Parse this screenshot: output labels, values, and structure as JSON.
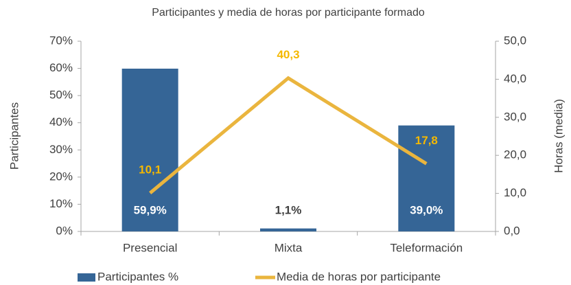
{
  "chart_data": {
    "type": "bar",
    "title": "Participantes y media de horas por participante formado",
    "ylabel": "Participantes",
    "y2label": "Horas (media)",
    "categories": [
      "Presencial",
      "Mixta",
      "Teleformación"
    ],
    "series": [
      {
        "name": "Participantes %",
        "type": "bar",
        "color": "#356596",
        "values": [
          59.9,
          1.1,
          39.0
        ],
        "value_labels": [
          "59,9%",
          "1,1%",
          "39,0%"
        ]
      },
      {
        "name": "Media de horas por participante",
        "type": "line",
        "axis": "y2",
        "color": "#eab53e",
        "values": [
          10.1,
          40.3,
          17.8
        ],
        "value_labels": [
          "10,1",
          "40,3",
          "17,8"
        ]
      }
    ],
    "ylim": [
      0,
      70
    ],
    "yticks": [
      {
        "value": 0,
        "label": "0%"
      },
      {
        "value": 10,
        "label": "10%"
      },
      {
        "value": 20,
        "label": "20%"
      },
      {
        "value": 30,
        "label": "30%"
      },
      {
        "value": 40,
        "label": "40%"
      },
      {
        "value": 50,
        "label": "50%"
      },
      {
        "value": 60,
        "label": "60%"
      },
      {
        "value": 70,
        "label": "70%"
      }
    ],
    "y2lim": [
      0,
      50
    ],
    "y2ticks": [
      {
        "value": 0,
        "label": "0,0"
      },
      {
        "value": 10,
        "label": "10,0"
      },
      {
        "value": 20,
        "label": "20,0"
      },
      {
        "value": 30,
        "label": "30,0"
      },
      {
        "value": 40,
        "label": "40,0"
      },
      {
        "value": 50,
        "label": "50,0"
      }
    ],
    "grid": false
  }
}
